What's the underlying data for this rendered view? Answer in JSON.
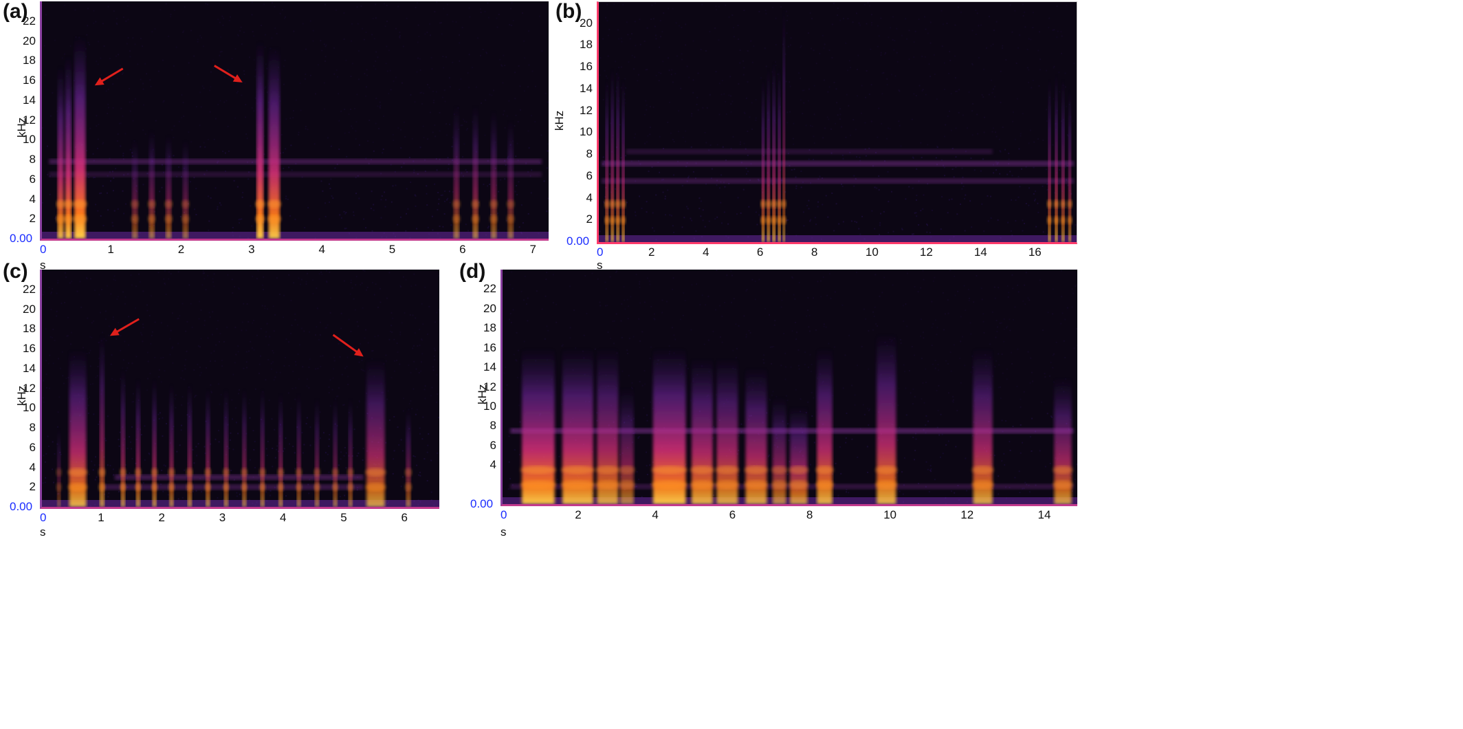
{
  "colors": {
    "background": "#0c0614",
    "axis_accent": "#c23a8c",
    "zero_label": "#1a2cff",
    "arrow": "#e0201c"
  },
  "chart_data": [
    {
      "id": "a",
      "panel_label": "(a)",
      "type": "heatmap",
      "xlabel": "s",
      "ylabel": "kHz",
      "xlim": [
        0,
        7.2
      ],
      "ylim": [
        0,
        24
      ],
      "x_ticks": [
        "0",
        "1",
        "2",
        "3",
        "4",
        "5",
        "6",
        "7"
      ],
      "y_ticks": [
        "0.00",
        "2",
        "4",
        "6",
        "8",
        "10",
        "12",
        "14",
        "16",
        "18",
        "20",
        "22"
      ],
      "calls": [
        {
          "t": 0.22,
          "w": 0.09,
          "top": 17.5,
          "glow": 0.9
        },
        {
          "t": 0.33,
          "w": 0.09,
          "top": 18.5,
          "glow": 1.0
        },
        {
          "t": 0.46,
          "w": 0.16,
          "top": 20.5,
          "glow": 1.0
        },
        {
          "t": 1.28,
          "w": 0.08,
          "top": 10,
          "glow": 0.5
        },
        {
          "t": 1.52,
          "w": 0.08,
          "top": 11,
          "glow": 0.55
        },
        {
          "t": 1.76,
          "w": 0.08,
          "top": 10.5,
          "glow": 0.55
        },
        {
          "t": 2.0,
          "w": 0.08,
          "top": 10,
          "glow": 0.5
        },
        {
          "t": 3.05,
          "w": 0.1,
          "top": 20,
          "glow": 1.0
        },
        {
          "t": 3.22,
          "w": 0.16,
          "top": 19.5,
          "glow": 0.95
        },
        {
          "t": 5.85,
          "w": 0.08,
          "top": 13.5,
          "glow": 0.55
        },
        {
          "t": 6.12,
          "w": 0.08,
          "top": 13.5,
          "glow": 0.6
        },
        {
          "t": 6.38,
          "w": 0.08,
          "top": 13,
          "glow": 0.55
        },
        {
          "t": 6.62,
          "w": 0.08,
          "top": 12,
          "glow": 0.5
        }
      ],
      "bands": [
        {
          "f": 7.8,
          "x0": 0.1,
          "x1": 7.1,
          "strength": 0.35
        },
        {
          "f": 6.5,
          "x0": 0.1,
          "x1": 7.1,
          "strength": 0.2
        }
      ],
      "arrows": [
        {
          "from": [
            1.15,
            17.2
          ],
          "to": [
            0.75,
            15.5
          ]
        },
        {
          "from": [
            2.45,
            17.5
          ],
          "to": [
            2.85,
            15.8
          ]
        }
      ]
    },
    {
      "id": "b",
      "panel_label": "(b)",
      "type": "heatmap",
      "xlabel": "s",
      "ylabel": "kHz",
      "xlim": [
        0,
        17.6
      ],
      "ylim": [
        0,
        22
      ],
      "x_ticks": [
        "0",
        "2",
        "4",
        "6",
        "8",
        "10",
        "12",
        "14",
        "16"
      ],
      "y_ticks": [
        "0.00",
        "2",
        "4",
        "6",
        "8",
        "10",
        "12",
        "14",
        "16",
        "18",
        "20"
      ],
      "calls": [
        {
          "t": 0.25,
          "w": 0.1,
          "top": 15,
          "glow": 0.9
        },
        {
          "t": 0.45,
          "w": 0.1,
          "top": 16,
          "glow": 0.95
        },
        {
          "t": 0.65,
          "w": 0.1,
          "top": 16,
          "glow": 0.95
        },
        {
          "t": 0.85,
          "w": 0.1,
          "top": 15,
          "glow": 0.9
        },
        {
          "t": 6.0,
          "w": 0.1,
          "top": 15,
          "glow": 0.95
        },
        {
          "t": 6.2,
          "w": 0.1,
          "top": 16,
          "glow": 0.95
        },
        {
          "t": 6.4,
          "w": 0.1,
          "top": 16.5,
          "glow": 1.0
        },
        {
          "t": 6.6,
          "w": 0.1,
          "top": 16,
          "glow": 0.95
        },
        {
          "t": 6.78,
          "w": 0.08,
          "top": 21.5,
          "glow": 0.9
        },
        {
          "t": 16.55,
          "w": 0.1,
          "top": 15,
          "glow": 0.9
        },
        {
          "t": 16.8,
          "w": 0.1,
          "top": 15.5,
          "glow": 0.95
        },
        {
          "t": 17.05,
          "w": 0.1,
          "top": 15,
          "glow": 0.9
        },
        {
          "t": 17.3,
          "w": 0.1,
          "top": 14,
          "glow": 0.85
        }
      ],
      "bands": [
        {
          "f": 7.2,
          "x0": 0.1,
          "x1": 17.5,
          "strength": 0.4
        },
        {
          "f": 5.6,
          "x0": 0.1,
          "x1": 17.5,
          "strength": 0.3
        },
        {
          "f": 8.3,
          "x0": 1.0,
          "x1": 14.5,
          "strength": 0.2
        }
      ],
      "arrows": []
    },
    {
      "id": "c",
      "panel_label": "(c)",
      "type": "heatmap",
      "xlabel": "s",
      "ylabel": "kHz",
      "xlim": [
        0,
        6.55
      ],
      "ylim": [
        0,
        24
      ],
      "x_ticks": [
        "0",
        "1",
        "2",
        "3",
        "4",
        "5",
        "6"
      ],
      "y_ticks": [
        "0.00",
        "2",
        "4",
        "6",
        "8",
        "10",
        "12",
        "14",
        "16",
        "18",
        "20",
        "22"
      ],
      "calls": [
        {
          "t": 0.25,
          "w": 0.06,
          "top": 8,
          "glow": 0.4
        },
        {
          "t": 0.45,
          "w": 0.28,
          "top": 16,
          "glow": 0.85
        },
        {
          "t": 0.95,
          "w": 0.08,
          "top": 17.5,
          "glow": 0.7
        },
        {
          "t": 1.3,
          "w": 0.07,
          "top": 14,
          "glow": 0.7
        },
        {
          "t": 1.55,
          "w": 0.07,
          "top": 13,
          "glow": 0.7
        },
        {
          "t": 1.82,
          "w": 0.07,
          "top": 13,
          "glow": 0.7
        },
        {
          "t": 2.1,
          "w": 0.07,
          "top": 12.5,
          "glow": 0.65
        },
        {
          "t": 2.4,
          "w": 0.07,
          "top": 12.5,
          "glow": 0.65
        },
        {
          "t": 2.7,
          "w": 0.07,
          "top": 12,
          "glow": 0.65
        },
        {
          "t": 3.0,
          "w": 0.07,
          "top": 12,
          "glow": 0.6
        },
        {
          "t": 3.3,
          "w": 0.07,
          "top": 12,
          "glow": 0.6
        },
        {
          "t": 3.6,
          "w": 0.07,
          "top": 12,
          "glow": 0.6
        },
        {
          "t": 3.9,
          "w": 0.07,
          "top": 11.5,
          "glow": 0.6
        },
        {
          "t": 4.2,
          "w": 0.07,
          "top": 11.5,
          "glow": 0.55
        },
        {
          "t": 4.5,
          "w": 0.07,
          "top": 11,
          "glow": 0.55
        },
        {
          "t": 4.8,
          "w": 0.07,
          "top": 11,
          "glow": 0.55
        },
        {
          "t": 5.05,
          "w": 0.07,
          "top": 11,
          "glow": 0.55
        },
        {
          "t": 5.35,
          "w": 0.3,
          "top": 15,
          "glow": 0.75
        },
        {
          "t": 6.0,
          "w": 0.08,
          "top": 10,
          "glow": 0.55
        }
      ],
      "bands": [
        {
          "f": 3.0,
          "x0": 1.2,
          "x1": 5.3,
          "strength": 0.35
        },
        {
          "f": 2.0,
          "x0": 1.0,
          "x1": 5.3,
          "strength": 0.3
        }
      ],
      "arrows": [
        {
          "from": [
            1.6,
            19.0
          ],
          "to": [
            1.12,
            17.3
          ]
        },
        {
          "from": [
            4.8,
            17.4
          ],
          "to": [
            5.3,
            15.2
          ]
        }
      ]
    },
    {
      "id": "d",
      "panel_label": "(d)",
      "type": "heatmap",
      "xlabel": "s",
      "ylabel": "kHz",
      "xlim": [
        0,
        14.9
      ],
      "ylim": [
        0,
        24
      ],
      "x_ticks": [
        "0",
        "2",
        "4",
        "6",
        "8",
        "10",
        "12",
        "14"
      ],
      "y_ticks": [
        "0.00",
        "4",
        "6",
        "8",
        "10",
        "12",
        "14",
        "16",
        "18",
        "20",
        "22"
      ],
      "calls": [
        {
          "t": 0.5,
          "w": 0.85,
          "top": 16,
          "glow": 0.95
        },
        {
          "t": 1.55,
          "w": 0.8,
          "top": 16,
          "glow": 0.9
        },
        {
          "t": 2.45,
          "w": 0.55,
          "top": 16,
          "glow": 0.8
        },
        {
          "t": 3.05,
          "w": 0.35,
          "top": 12,
          "glow": 0.6
        },
        {
          "t": 3.9,
          "w": 0.85,
          "top": 16,
          "glow": 0.95
        },
        {
          "t": 4.9,
          "w": 0.55,
          "top": 15,
          "glow": 0.85
        },
        {
          "t": 5.55,
          "w": 0.55,
          "top": 15,
          "glow": 0.8
        },
        {
          "t": 6.3,
          "w": 0.55,
          "top": 14,
          "glow": 0.8
        },
        {
          "t": 7.0,
          "w": 0.35,
          "top": 11,
          "glow": 0.65
        },
        {
          "t": 7.45,
          "w": 0.45,
          "top": 10,
          "glow": 0.75
        },
        {
          "t": 8.15,
          "w": 0.4,
          "top": 16,
          "glow": 0.85
        },
        {
          "t": 9.7,
          "w": 0.5,
          "top": 17.5,
          "glow": 0.85
        },
        {
          "t": 12.2,
          "w": 0.5,
          "top": 16,
          "glow": 0.8
        },
        {
          "t": 14.3,
          "w": 0.45,
          "top": 13,
          "glow": 0.75
        }
      ],
      "bands": [
        {
          "f": 7.5,
          "x0": 0.2,
          "x1": 14.8,
          "strength": 0.45
        },
        {
          "f": 1.8,
          "x0": 0.2,
          "x1": 14.8,
          "strength": 0.25
        }
      ],
      "arrows": []
    }
  ]
}
